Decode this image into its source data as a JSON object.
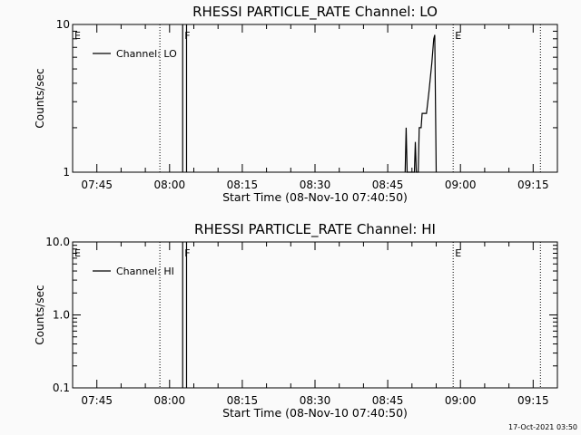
{
  "footer_timestamp": "17-Oct-2021 03:50",
  "colors": {
    "background": "#fafafa",
    "foreground": "#000000"
  },
  "chart_data": [
    {
      "type": "line",
      "title": "RHESSI PARTICLE_RATE Channel: LO",
      "xlabel": "Start Time (08-Nov-10 07:40:50)",
      "ylabel": "Counts/sec",
      "x_unit": "minutes after 07:40",
      "xlim": [
        0,
        100
      ],
      "yscale": "log",
      "ylim": [
        1,
        10
      ],
      "yticks": [
        {
          "v": 1,
          "label": "1"
        },
        {
          "v": 10,
          "label": "10"
        }
      ],
      "xticks": [
        {
          "v": 5,
          "label": "07:45"
        },
        {
          "v": 20,
          "label": "08:00"
        },
        {
          "v": 35,
          "label": "08:15"
        },
        {
          "v": 50,
          "label": "08:30"
        },
        {
          "v": 65,
          "label": "08:45"
        },
        {
          "v": 80,
          "label": "09:00"
        },
        {
          "v": 95,
          "label": "09:15"
        }
      ],
      "grid": false,
      "legend": "top-left",
      "markers": [
        {
          "label": "E",
          "x": 0,
          "line": false
        },
        {
          "label": "",
          "x": 18,
          "line": true
        },
        {
          "label": "F",
          "x": 22.7,
          "line": false
        },
        {
          "label": "E",
          "x": 78.5,
          "line": true
        },
        {
          "label": "",
          "x": 96.5,
          "line": true
        }
      ],
      "spikes": [
        22.7,
        23.5
      ],
      "series": [
        {
          "name": "Channel: LO",
          "points": [
            [
              68.6,
              1
            ],
            [
              68.8,
              2.0
            ],
            [
              69.0,
              1
            ],
            [
              70.5,
              1
            ],
            [
              70.7,
              1.6
            ],
            [
              70.9,
              1
            ],
            [
              71.3,
              1
            ],
            [
              71.5,
              2.0
            ],
            [
              71.9,
              2.0
            ],
            [
              72.1,
              2.5
            ],
            [
              73.0,
              2.5
            ],
            [
              73.5,
              3.5
            ],
            [
              74.1,
              5.5
            ],
            [
              74.5,
              8.0
            ],
            [
              74.7,
              8.5
            ],
            [
              75.0,
              1
            ]
          ]
        }
      ]
    },
    {
      "type": "line",
      "title": "RHESSI PARTICLE_RATE Channel: HI",
      "xlabel": "Start Time (08-Nov-10 07:40:50)",
      "ylabel": "Counts/sec",
      "x_unit": "minutes after 07:40",
      "xlim": [
        0,
        100
      ],
      "yscale": "log",
      "ylim": [
        0.1,
        10
      ],
      "yticks": [
        {
          "v": 0.1,
          "label": "0.1"
        },
        {
          "v": 1,
          "label": "1.0"
        },
        {
          "v": 10,
          "label": "10.0"
        }
      ],
      "xticks": [
        {
          "v": 5,
          "label": "07:45"
        },
        {
          "v": 20,
          "label": "08:00"
        },
        {
          "v": 35,
          "label": "08:15"
        },
        {
          "v": 50,
          "label": "08:30"
        },
        {
          "v": 65,
          "label": "08:45"
        },
        {
          "v": 80,
          "label": "09:00"
        },
        {
          "v": 95,
          "label": "09:15"
        }
      ],
      "grid": false,
      "legend": "top-left",
      "markers": [
        {
          "label": "E",
          "x": 0,
          "line": false
        },
        {
          "label": "",
          "x": 18,
          "line": true
        },
        {
          "label": "F",
          "x": 22.7,
          "line": false
        },
        {
          "label": "E",
          "x": 78.5,
          "line": true
        },
        {
          "label": "",
          "x": 96.5,
          "line": true
        }
      ],
      "spikes": [
        22.7,
        23.5
      ],
      "series": [
        {
          "name": "Channel: HI",
          "points": []
        }
      ]
    }
  ]
}
